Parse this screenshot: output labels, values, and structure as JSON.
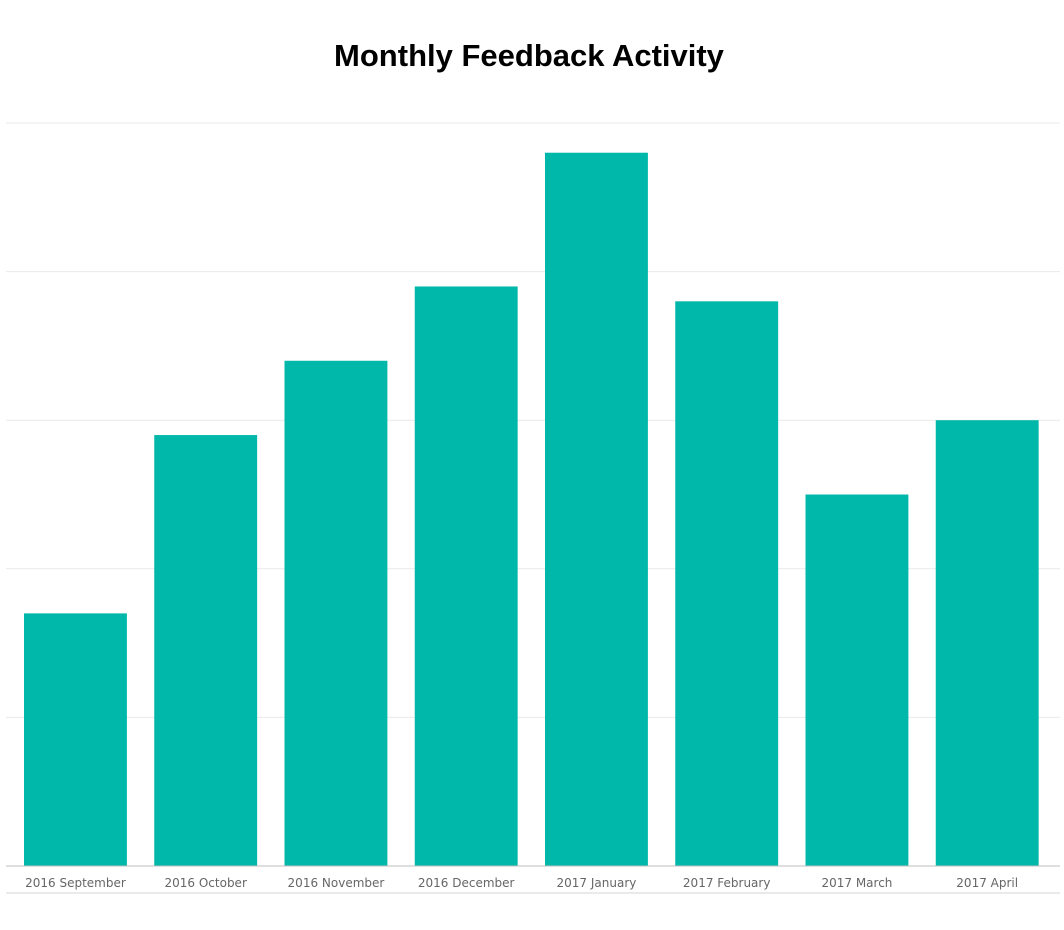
{
  "chart_data": {
    "type": "bar",
    "title": "Monthly Feedback Activity",
    "categories": [
      "2016 September",
      "2016 October",
      "2016 November",
      "2016 December",
      "2017 January",
      "2017 February",
      "2017 March",
      "2017 April"
    ],
    "values": [
      17,
      29,
      34,
      39,
      48,
      38,
      25,
      30
    ],
    "xlabel": "",
    "ylabel": "",
    "ylim": [
      0,
      50
    ],
    "grid": true,
    "bar_color": "#00b8aa",
    "grid_color": "#e9e9e9",
    "axis_color": "#bdbdbd"
  }
}
